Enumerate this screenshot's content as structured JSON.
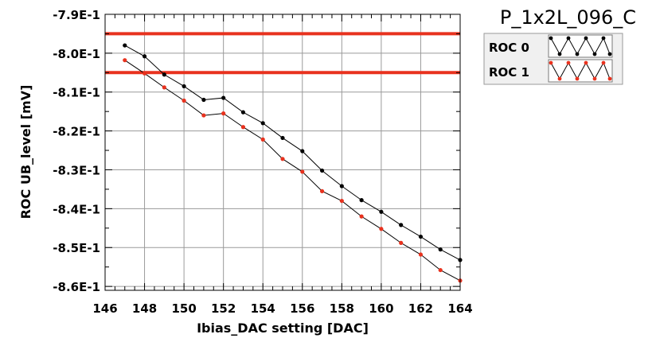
{
  "chart_data": {
    "type": "line",
    "title": "P_1x2L_096_C",
    "xlabel": "Ibias_DAC setting [DAC]",
    "ylabel": "ROC UB_level [mV]",
    "xlim": [
      146,
      164
    ],
    "ylim": [
      -0.861,
      -0.79
    ],
    "xticks": [
      "146",
      "148",
      "150",
      "152",
      "154",
      "156",
      "158",
      "160",
      "162",
      "164"
    ],
    "yticks": [
      "-7.9E-1",
      "-8.0E-1",
      "-8.1E-1",
      "-8.2E-1",
      "-8.3E-1",
      "-8.4E-1",
      "-8.5E-1",
      "-8.6E-1"
    ],
    "ytick_values": [
      -0.79,
      -0.8,
      -0.81,
      -0.82,
      -0.83,
      -0.84,
      -0.85,
      -0.86
    ],
    "grid": true,
    "legend_position": "top-right",
    "reference_lines": [
      {
        "y": -0.795,
        "color": "#e8321e"
      },
      {
        "y": -0.805,
        "color": "#e8321e"
      }
    ],
    "x": [
      147,
      148,
      149,
      150,
      151,
      152,
      153,
      154,
      155,
      156,
      157,
      158,
      159,
      160,
      161,
      162,
      163,
      164
    ],
    "series": [
      {
        "name": "ROC 0",
        "color": "#000000",
        "values": [
          -0.798,
          -0.8008,
          -0.8055,
          -0.8085,
          -0.812,
          -0.8115,
          -0.8152,
          -0.818,
          -0.8218,
          -0.8252,
          -0.8302,
          -0.8342,
          -0.8378,
          -0.8408,
          -0.8442,
          -0.8472,
          -0.8505,
          -0.8532
        ]
      },
      {
        "name": "ROC 1",
        "color": "#e8321e",
        "values": [
          -0.8018,
          -0.8052,
          -0.8088,
          -0.8122,
          -0.816,
          -0.8155,
          -0.819,
          -0.8222,
          -0.8272,
          -0.8305,
          -0.8355,
          -0.838,
          -0.842,
          -0.8452,
          -0.8488,
          -0.8518,
          -0.8558,
          -0.8585
        ]
      }
    ]
  }
}
